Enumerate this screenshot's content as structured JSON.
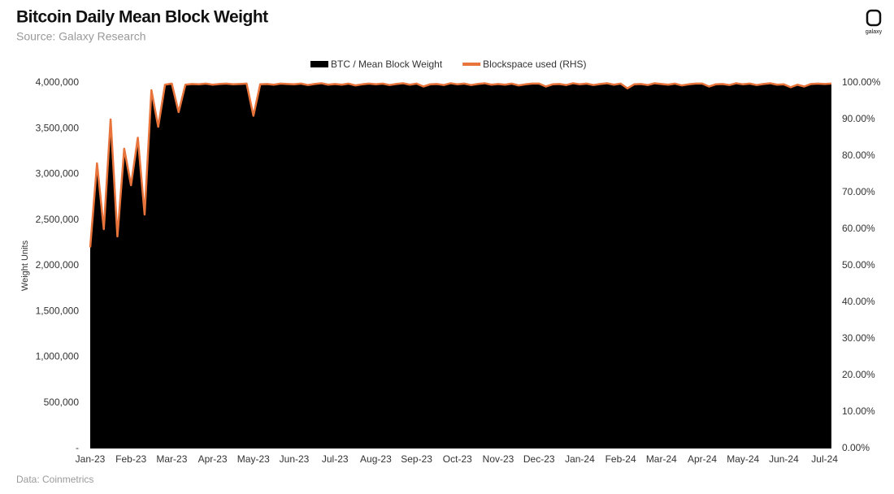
{
  "chart_data": {
    "type": "area-line",
    "title": "Bitcoin Daily Mean Block Weight",
    "subtitle": "Source: Galaxy Research",
    "source": "Data: Coinmetrics",
    "logo_text": "galaxy",
    "y_label": "Weight Units",
    "categories": [
      "Jan-23",
      null,
      null,
      null,
      null,
      null,
      "Feb-23",
      null,
      null,
      null,
      null,
      null,
      "Mar-23",
      null,
      null,
      null,
      null,
      null,
      "Apr-23",
      null,
      null,
      null,
      null,
      null,
      "May-23",
      null,
      null,
      null,
      null,
      null,
      "Jun-23",
      null,
      null,
      null,
      null,
      null,
      "Jul-23",
      null,
      null,
      null,
      null,
      null,
      "Aug-23",
      null,
      null,
      null,
      null,
      null,
      "Sep-23",
      null,
      null,
      null,
      null,
      null,
      "Oct-23",
      null,
      null,
      null,
      null,
      null,
      "Nov-23",
      null,
      null,
      null,
      null,
      null,
      "Dec-23",
      null,
      null,
      null,
      null,
      null,
      "Jan-24",
      null,
      null,
      null,
      null,
      null,
      "Feb-24",
      null,
      null,
      null,
      null,
      null,
      "Mar-24",
      null,
      null,
      null,
      null,
      null,
      "Apr-24",
      null,
      null,
      null,
      null,
      null,
      "May-24",
      null,
      null,
      null,
      null,
      null,
      "Jun-24",
      null,
      null,
      null,
      null,
      null,
      "Jul-24",
      null
    ],
    "series": [
      {
        "name": "BTC / Mean Block Weight",
        "color": "#000000",
        "values": [
          2200000,
          3120000,
          2400000,
          3600000,
          2320000,
          3280000,
          2880000,
          3400000,
          2560000,
          3920000,
          3520000,
          3980000,
          3992000,
          3680000,
          3980000,
          3988000,
          3984000,
          3992000,
          3980000,
          3988000,
          3992000,
          3984000,
          3988000,
          3992000,
          3640000,
          3984000,
          3988000,
          3980000,
          3992000,
          3988000,
          3984000,
          3992000,
          3976000,
          3988000,
          3996000,
          3980000,
          3988000,
          3980000,
          3992000,
          3972000,
          3984000,
          3992000,
          3984000,
          3992000,
          3976000,
          3988000,
          3996000,
          3980000,
          3992000,
          3960000,
          3984000,
          3988000,
          3976000,
          3996000,
          3984000,
          3992000,
          3976000,
          3988000,
          3996000,
          3980000,
          3988000,
          3980000,
          3992000,
          3972000,
          3984000,
          3992000,
          3992000,
          3960000,
          3984000,
          3988000,
          3976000,
          3996000,
          3984000,
          3992000,
          3976000,
          3988000,
          3996000,
          3980000,
          3992000,
          3940000,
          3984000,
          3988000,
          3976000,
          3996000,
          3988000,
          3980000,
          3992000,
          3972000,
          3984000,
          3992000,
          3992000,
          3960000,
          3984000,
          3988000,
          3976000,
          3996000,
          3984000,
          3992000,
          3976000,
          3988000,
          3996000,
          3980000,
          3984000,
          3952000,
          3980000,
          3960000,
          3988000,
          3992000,
          3988000,
          3992000
        ]
      },
      {
        "name": "Blockspace used (RHS)",
        "color": "#e8743b",
        "axis": "y2",
        "values": [
          55,
          78,
          60,
          90,
          58,
          82,
          72,
          85,
          64,
          98,
          88,
          99.5,
          99.8,
          92,
          99.5,
          99.7,
          99.6,
          99.8,
          99.5,
          99.7,
          99.8,
          99.6,
          99.7,
          99.8,
          91,
          99.6,
          99.7,
          99.5,
          99.8,
          99.7,
          99.6,
          99.8,
          99.4,
          99.7,
          99.9,
          99.5,
          99.7,
          99.5,
          99.8,
          99.3,
          99.6,
          99.8,
          99.6,
          99.8,
          99.4,
          99.7,
          99.9,
          99.5,
          99.8,
          99.0,
          99.6,
          99.7,
          99.4,
          99.9,
          99.6,
          99.8,
          99.4,
          99.7,
          99.9,
          99.5,
          99.7,
          99.5,
          99.8,
          99.3,
          99.6,
          99.8,
          99.8,
          99.0,
          99.6,
          99.7,
          99.4,
          99.9,
          99.6,
          99.8,
          99.4,
          99.7,
          99.9,
          99.5,
          99.8,
          98.5,
          99.6,
          99.7,
          99.4,
          99.9,
          99.7,
          99.5,
          99.8,
          99.3,
          99.6,
          99.8,
          99.8,
          99.0,
          99.6,
          99.7,
          99.4,
          99.9,
          99.6,
          99.8,
          99.4,
          99.7,
          99.9,
          99.5,
          99.6,
          98.8,
          99.5,
          99.0,
          99.7,
          99.8,
          99.7,
          99.8
        ]
      }
    ],
    "ylim": [
      0,
      4000000
    ],
    "yticks": [
      {
        "value": 0,
        "label": "-"
      },
      {
        "value": 500000,
        "label": "500,000"
      },
      {
        "value": 1000000,
        "label": "1,000,000"
      },
      {
        "value": 1500000,
        "label": "1,500,000"
      },
      {
        "value": 2000000,
        "label": "2,000,000"
      },
      {
        "value": 2500000,
        "label": "2,500,000"
      },
      {
        "value": 3000000,
        "label": "3,000,000"
      },
      {
        "value": 3500000,
        "label": "3,500,000"
      },
      {
        "value": 4000000,
        "label": "4,000,000"
      }
    ],
    "y2lim": [
      0,
      100
    ],
    "y2ticks": [
      {
        "value": 0,
        "label": "0.00%"
      },
      {
        "value": 10,
        "label": "10.00%"
      },
      {
        "value": 20,
        "label": "20.00%"
      },
      {
        "value": 30,
        "label": "30.00%"
      },
      {
        "value": 40,
        "label": "40.00%"
      },
      {
        "value": 50,
        "label": "50.00%"
      },
      {
        "value": 60,
        "label": "60.00%"
      },
      {
        "value": 70,
        "label": "70.00%"
      },
      {
        "value": 80,
        "label": "80.00%"
      },
      {
        "value": 90,
        "label": "90.00%"
      },
      {
        "value": 100,
        "label": "100.00%"
      }
    ],
    "legend": "top"
  }
}
